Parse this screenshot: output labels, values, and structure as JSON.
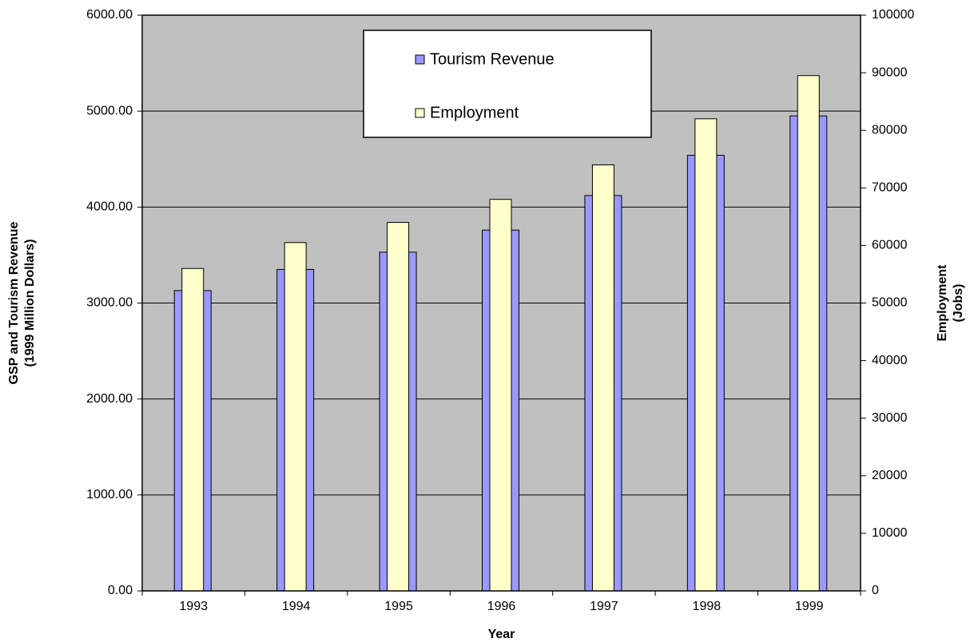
{
  "chart_data": {
    "type": "bar",
    "xlabel": "Year",
    "ylabel": [
      "GSP and Tourism Revenue",
      "(1999 Million Dollars)"
    ],
    "y2label": [
      "Employment",
      "(Jobs)"
    ],
    "categories": [
      "1993",
      "1994",
      "1995",
      "1996",
      "1997",
      "1998",
      "1999"
    ],
    "series": [
      {
        "name": "Tourism Revenue",
        "color": "#9999ff",
        "axis": "y",
        "values": [
          3130,
          3350,
          3530,
          3760,
          4120,
          4540,
          4950
        ]
      },
      {
        "name": "Employment",
        "color": "#ffffcc",
        "axis": "y2",
        "values": [
          56000,
          60500,
          64000,
          68000,
          74000,
          82000,
          89500
        ]
      }
    ],
    "ylim": [
      0,
      6000
    ],
    "yticks": [
      {
        "value": 0,
        "label": "0.00"
      },
      {
        "value": 1000,
        "label": "1000.00"
      },
      {
        "value": 2000,
        "label": "2000.00"
      },
      {
        "value": 3000,
        "label": "3000.00"
      },
      {
        "value": 4000,
        "label": "4000.00"
      },
      {
        "value": 5000,
        "label": "5000.00"
      },
      {
        "value": 6000,
        "label": "6000.00"
      }
    ],
    "y2lim": [
      0,
      100000
    ],
    "y2ticks": [
      0,
      10000,
      20000,
      30000,
      40000,
      50000,
      60000,
      70000,
      80000,
      90000,
      100000
    ],
    "grid": true,
    "legend": "top"
  }
}
